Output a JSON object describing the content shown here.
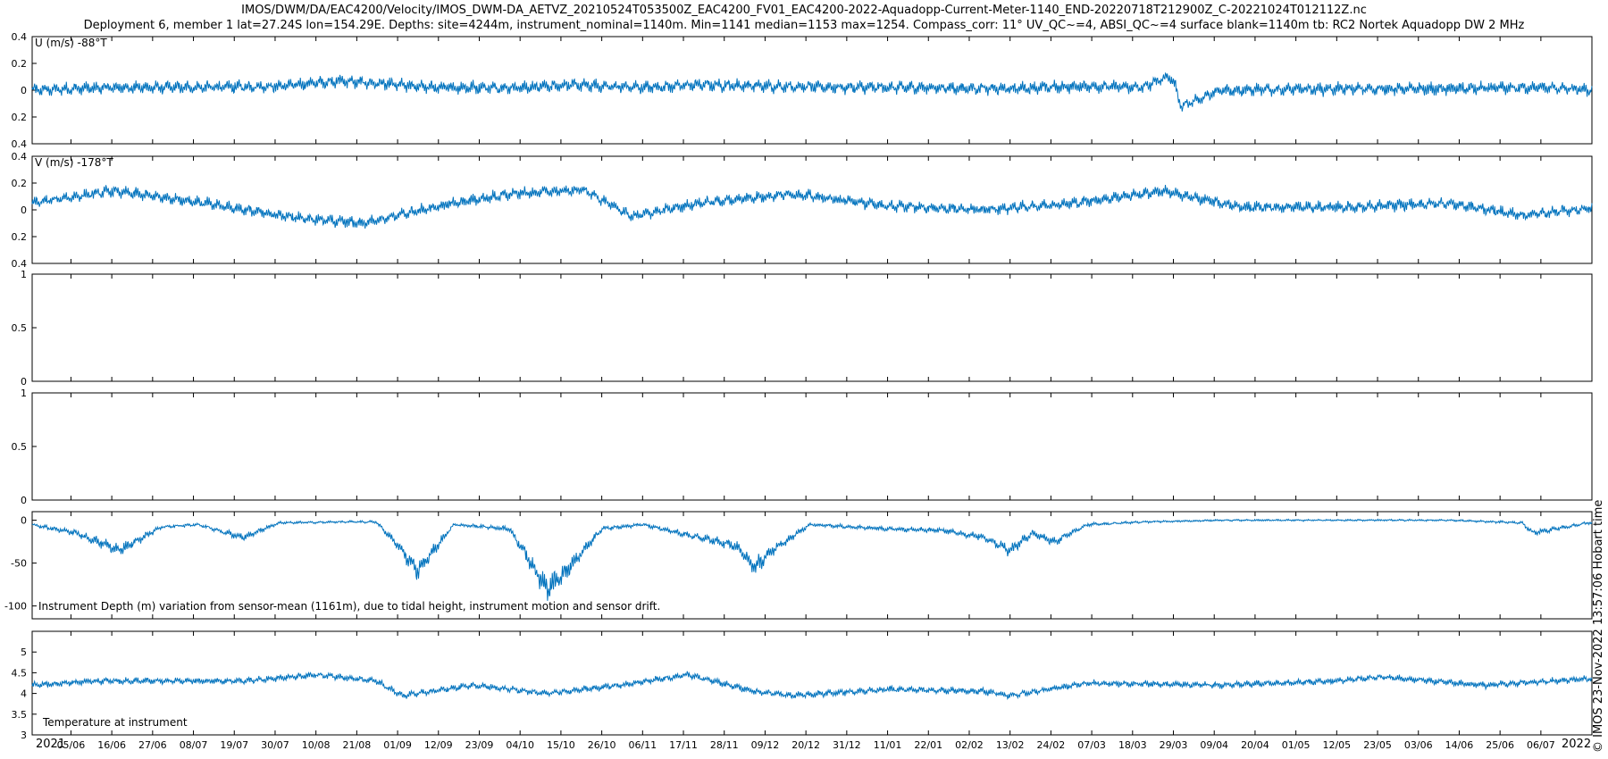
{
  "header": {
    "title_line1": "IMOS/DWM/DA/EAC4200/Velocity/IMOS_DWM-DA_AETVZ_20210524T053500Z_EAC4200_FV01_EAC4200-2022-Aquadopp-Current-Meter-1140_END-20220718T212900Z_C-20221024T012112Z.nc",
    "title_line2": "Deployment 6, member 1 lat=27.24S lon=154.29E. Depths: site=4244m, instrument_nominal=1140m. Min=1141 median=1153 max=1254. Compass_corr: 11° UV_QC~=4, ABSI_QC~=4 surface blank=1140m tb: RC2 Nortek Aquadopp DW 2 MHz"
  },
  "side_label": "© IMOS 23-Nov-2022 13:57:06 Hobart time",
  "x_axis": {
    "tick_labels": [
      "05/06",
      "16/06",
      "27/06",
      "08/07",
      "19/07",
      "30/07",
      "10/08",
      "21/08",
      "01/09",
      "12/09",
      "23/09",
      "04/10",
      "15/10",
      "26/10",
      "06/11",
      "17/11",
      "28/11",
      "09/12",
      "20/12",
      "31/12",
      "11/01",
      "22/01",
      "02/02",
      "13/02",
      "24/02",
      "07/03",
      "18/03",
      "29/03",
      "09/04",
      "20/04",
      "01/05",
      "12/05",
      "23/05",
      "03/06",
      "14/06",
      "25/06",
      "06/07"
    ],
    "year_start": "2021",
    "year_end": "2022"
  },
  "colors": {
    "line": "#0072BD",
    "axes": "#000000",
    "background": "#ffffff"
  },
  "chart_data": [
    {
      "type": "line",
      "label": "U (m/s) -88°T",
      "ylim": [
        -0.4,
        0.4
      ],
      "y_ticks": [
        0.4,
        0.2,
        0,
        -0.2,
        -0.4
      ],
      "y_tick_labels": [
        "0.4",
        "0.2",
        "0",
        "0.2",
        "0.4"
      ],
      "series": [
        {
          "x": [
            "2021-05-24",
            "2021-06-15",
            "2021-07-05",
            "2021-07-30",
            "2021-08-15",
            "2021-08-25",
            "2021-09-10",
            "2021-10-05",
            "2021-10-15",
            "2021-11-05",
            "2021-11-20",
            "2021-12-10",
            "2021-12-31",
            "2022-01-20",
            "2022-02-10",
            "2022-03-05",
            "2022-03-20",
            "2022-03-26",
            "2022-03-28",
            "2022-03-30",
            "2022-04-10",
            "2022-05-10",
            "2022-06-10",
            "2022-07-06",
            "2022-07-18"
          ],
          "y": [
            0.0,
            0.02,
            0.02,
            0.03,
            0.07,
            0.05,
            0.02,
            0.02,
            0.04,
            0.02,
            0.04,
            0.03,
            0.02,
            0.02,
            0.01,
            0.03,
            0.02,
            0.1,
            0.08,
            -0.12,
            0.0,
            0.01,
            0.01,
            0.02,
            0.0
          ]
        }
      ]
    },
    {
      "type": "line",
      "label": "V (m/s) -178°T",
      "ylim": [
        -0.4,
        0.4
      ],
      "y_ticks": [
        0.4,
        0.2,
        0,
        -0.2,
        -0.4
      ],
      "y_tick_labels": [
        "0.4",
        "0.2",
        "0",
        "0.2",
        "0.4"
      ],
      "series": [
        {
          "x": [
            "2021-05-24",
            "2021-06-15",
            "2021-07-05",
            "2021-08-01",
            "2021-08-21",
            "2021-09-15",
            "2021-10-01",
            "2021-10-20",
            "2021-11-02",
            "2021-11-20",
            "2021-12-15",
            "2022-01-10",
            "2022-02-05",
            "2022-03-01",
            "2022-03-25",
            "2022-04-15",
            "2022-05-15",
            "2022-06-10",
            "2022-06-30",
            "2022-07-18"
          ],
          "y": [
            0.05,
            0.14,
            0.07,
            -0.05,
            -0.1,
            0.05,
            0.12,
            0.15,
            -0.05,
            0.05,
            0.12,
            0.03,
            0.0,
            0.05,
            0.14,
            0.02,
            0.02,
            0.05,
            -0.04,
            0.01
          ]
        }
      ]
    },
    {
      "type": "line",
      "label": "",
      "ylim": [
        0,
        1
      ],
      "y_ticks": [
        1,
        0.5,
        0
      ],
      "y_tick_labels": [
        "1",
        "0.5",
        "0"
      ],
      "series": []
    },
    {
      "type": "line",
      "label": "",
      "ylim": [
        0,
        1
      ],
      "y_ticks": [
        1,
        0.5,
        0
      ],
      "y_tick_labels": [
        "1",
        "0.5",
        "0"
      ],
      "series": []
    },
    {
      "type": "line",
      "label": "Instrument Depth (m) variation from sensor-mean (1161m), due to tidal height, instrument motion and sensor drift.",
      "ylim": [
        -115,
        10
      ],
      "y_ticks": [
        0,
        -50,
        -100
      ],
      "y_tick_labels": [
        "0",
        "-50",
        "-100"
      ],
      "series": [
        {
          "x": [
            "2021-05-24",
            "2021-06-05",
            "2021-06-17",
            "2021-06-28",
            "2021-07-08",
            "2021-07-20",
            "2021-07-30",
            "2021-08-15",
            "2021-08-25",
            "2021-08-31",
            "2021-09-05",
            "2021-09-15",
            "2021-09-30",
            "2021-10-10",
            "2021-10-15",
            "2021-10-25",
            "2021-11-05",
            "2021-11-15",
            "2021-11-30",
            "2021-12-05",
            "2021-12-10",
            "2021-12-20",
            "2022-01-10",
            "2022-01-25",
            "2022-02-05",
            "2022-02-12",
            "2022-02-18",
            "2022-02-24",
            "2022-03-05",
            "2022-03-20",
            "2022-04-10",
            "2022-05-10",
            "2022-06-10",
            "2022-06-30",
            "2022-07-03",
            "2022-07-18"
          ],
          "y": [
            -5,
            -15,
            -35,
            -8,
            -5,
            -20,
            -3,
            -2,
            -2,
            -30,
            -60,
            -5,
            -10,
            -80,
            -60,
            -10,
            -5,
            -15,
            -30,
            -55,
            -35,
            -5,
            -10,
            -12,
            -20,
            -35,
            -15,
            -25,
            -5,
            -2,
            0,
            0,
            0,
            -3,
            -15,
            -3
          ]
        }
      ]
    },
    {
      "type": "line",
      "label": "Temperature at instrument",
      "ylim": [
        3,
        5.5
      ],
      "y_ticks": [
        5,
        4.5,
        4,
        3.5,
        3
      ],
      "y_tick_labels": [
        "5",
        "4.5",
        "4",
        "3.5",
        "3"
      ],
      "series": [
        {
          "x": [
            "2021-05-24",
            "2021-06-10",
            "2021-07-01",
            "2021-07-20",
            "2021-08-10",
            "2021-08-25",
            "2021-09-01",
            "2021-09-20",
            "2021-10-10",
            "2021-10-30",
            "2021-11-17",
            "2021-12-05",
            "2021-12-15",
            "2022-01-10",
            "2022-02-05",
            "2022-02-12",
            "2022-03-05",
            "2022-04-10",
            "2022-05-10",
            "2022-05-23",
            "2022-06-20",
            "2022-07-18"
          ],
          "y": [
            4.2,
            4.3,
            4.3,
            4.3,
            4.45,
            4.3,
            3.95,
            4.2,
            4.0,
            4.2,
            4.45,
            4.05,
            3.95,
            4.1,
            4.05,
            3.95,
            4.25,
            4.2,
            4.3,
            4.4,
            4.2,
            4.35
          ]
        }
      ]
    }
  ]
}
